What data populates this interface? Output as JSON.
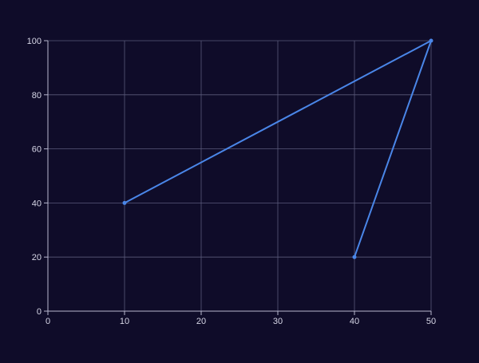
{
  "colors": {
    "background": "#0f0c29",
    "grid": "#5a5a7a",
    "axis": "#b8b8d0",
    "tick_text": "#d6d6e6",
    "series": "#4a86e8"
  },
  "chart_data": {
    "type": "line",
    "title": "",
    "xlabel": "",
    "ylabel": "",
    "xlim": [
      0,
      50
    ],
    "ylim": [
      0,
      100
    ],
    "x_ticks": [
      0,
      10,
      20,
      30,
      40,
      50
    ],
    "y_ticks": [
      0,
      20,
      40,
      60,
      80,
      100
    ],
    "grid": true,
    "legend": "none",
    "series": [
      {
        "points": [
          {
            "x": 10,
            "y": 40
          },
          {
            "x": 50,
            "y": 100
          },
          {
            "x": 40,
            "y": 20
          }
        ]
      }
    ]
  }
}
